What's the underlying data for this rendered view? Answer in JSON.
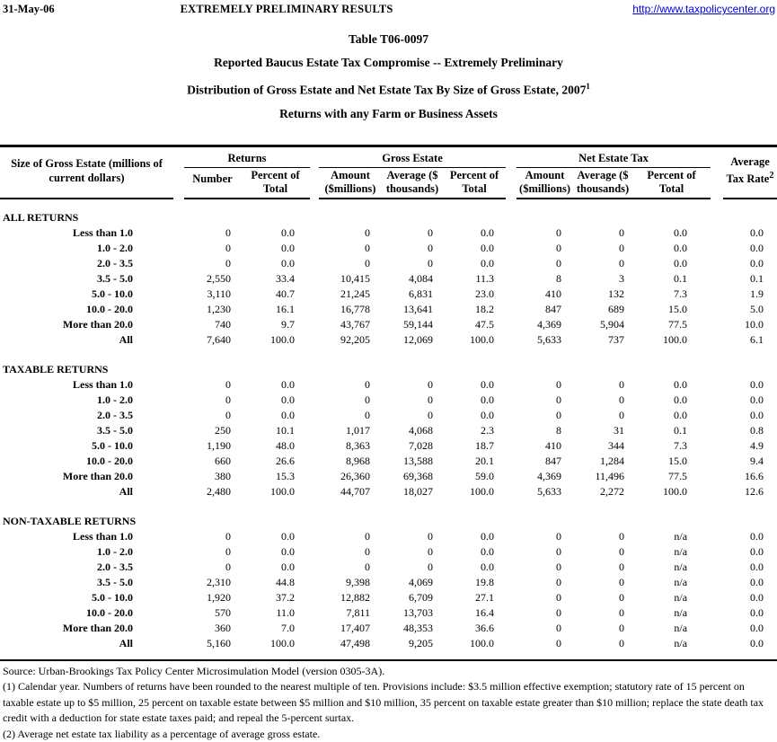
{
  "header": {
    "date": "31-May-06",
    "banner": "EXTREMELY PRELIMINARY RESULTS",
    "url": "http://www.taxpolicycenter.org"
  },
  "titles": {
    "line1": "Table T06-0097",
    "line2": "Reported Baucus Estate Tax Compromise -- Extremely Preliminary",
    "line3": "Distribution of Gross Estate and Net Estate Tax By Size of Gross Estate, 2007",
    "line3_sup": "1",
    "line4": "Returns with any Farm or Business Assets"
  },
  "table": {
    "stub_header": "Size of Gross Estate (millions of current dollars)",
    "groups": [
      {
        "label": "Returns"
      },
      {
        "label": "Gross Estate"
      },
      {
        "label": "Net Estate Tax"
      }
    ],
    "header_cols": [
      [
        "Number"
      ],
      [
        "Percent of",
        "Total"
      ],
      [
        "Amount",
        "($millions)"
      ],
      [
        "Average ($",
        "thousands)"
      ],
      [
        "Percent of",
        "Total"
      ],
      [
        "Amount",
        "($millions)"
      ],
      [
        "Average ($",
        "thousands)"
      ],
      [
        "Percent of",
        "Total"
      ]
    ],
    "rate_header": {
      "line1": "Average",
      "line2": "Tax Rate",
      "sup": "2"
    },
    "sections": [
      {
        "title": "ALL RETURNS",
        "rows": [
          {
            "label": "Less than 1.0",
            "values": [
              "0",
              "0.0",
              "0",
              "0",
              "0.0",
              "0",
              "0",
              "0.0",
              "0.0"
            ]
          },
          {
            "label": "1.0 - 2.0",
            "values": [
              "0",
              "0.0",
              "0",
              "0",
              "0.0",
              "0",
              "0",
              "0.0",
              "0.0"
            ]
          },
          {
            "label": "2.0 - 3.5",
            "values": [
              "0",
              "0.0",
              "0",
              "0",
              "0.0",
              "0",
              "0",
              "0.0",
              "0.0"
            ]
          },
          {
            "label": "3.5 - 5.0",
            "values": [
              "2,550",
              "33.4",
              "10,415",
              "4,084",
              "11.3",
              "8",
              "3",
              "0.1",
              "0.1"
            ]
          },
          {
            "label": "5.0 - 10.0",
            "values": [
              "3,110",
              "40.7",
              "21,245",
              "6,831",
              "23.0",
              "410",
              "132",
              "7.3",
              "1.9"
            ]
          },
          {
            "label": "10.0 - 20.0",
            "values": [
              "1,230",
              "16.1",
              "16,778",
              "13,641",
              "18.2",
              "847",
              "689",
              "15.0",
              "5.0"
            ]
          },
          {
            "label": "More than 20.0",
            "values": [
              "740",
              "9.7",
              "43,767",
              "59,144",
              "47.5",
              "4,369",
              "5,904",
              "77.5",
              "10.0"
            ]
          },
          {
            "label": "All",
            "values": [
              "7,640",
              "100.0",
              "92,205",
              "12,069",
              "100.0",
              "5,633",
              "737",
              "100.0",
              "6.1"
            ]
          }
        ]
      },
      {
        "title": "TAXABLE RETURNS",
        "rows": [
          {
            "label": "Less than 1.0",
            "values": [
              "0",
              "0.0",
              "0",
              "0",
              "0.0",
              "0",
              "0",
              "0.0",
              "0.0"
            ]
          },
          {
            "label": "1.0 - 2.0",
            "values": [
              "0",
              "0.0",
              "0",
              "0",
              "0.0",
              "0",
              "0",
              "0.0",
              "0.0"
            ]
          },
          {
            "label": "2.0 - 3.5",
            "values": [
              "0",
              "0.0",
              "0",
              "0",
              "0.0",
              "0",
              "0",
              "0.0",
              "0.0"
            ]
          },
          {
            "label": "3.5 - 5.0",
            "values": [
              "250",
              "10.1",
              "1,017",
              "4,068",
              "2.3",
              "8",
              "31",
              "0.1",
              "0.8"
            ]
          },
          {
            "label": "5.0 - 10.0",
            "values": [
              "1,190",
              "48.0",
              "8,363",
              "7,028",
              "18.7",
              "410",
              "344",
              "7.3",
              "4.9"
            ]
          },
          {
            "label": "10.0 - 20.0",
            "values": [
              "660",
              "26.6",
              "8,968",
              "13,588",
              "20.1",
              "847",
              "1,284",
              "15.0",
              "9.4"
            ]
          },
          {
            "label": "More than 20.0",
            "values": [
              "380",
              "15.3",
              "26,360",
              "69,368",
              "59.0",
              "4,369",
              "11,496",
              "77.5",
              "16.6"
            ]
          },
          {
            "label": "All",
            "values": [
              "2,480",
              "100.0",
              "44,707",
              "18,027",
              "100.0",
              "5,633",
              "2,272",
              "100.0",
              "12.6"
            ]
          }
        ]
      },
      {
        "title": "NON-TAXABLE RETURNS",
        "rows": [
          {
            "label": "Less than 1.0",
            "values": [
              "0",
              "0.0",
              "0",
              "0",
              "0.0",
              "0",
              "0",
              "n/a",
              "0.0"
            ]
          },
          {
            "label": "1.0 - 2.0",
            "values": [
              "0",
              "0.0",
              "0",
              "0",
              "0.0",
              "0",
              "0",
              "n/a",
              "0.0"
            ]
          },
          {
            "label": "2.0 - 3.5",
            "values": [
              "0",
              "0.0",
              "0",
              "0",
              "0.0",
              "0",
              "0",
              "n/a",
              "0.0"
            ]
          },
          {
            "label": "3.5 - 5.0",
            "values": [
              "2,310",
              "44.8",
              "9,398",
              "4,069",
              "19.8",
              "0",
              "0",
              "n/a",
              "0.0"
            ]
          },
          {
            "label": "5.0 - 10.0",
            "values": [
              "1,920",
              "37.2",
              "12,882",
              "6,709",
              "27.1",
              "0",
              "0",
              "n/a",
              "0.0"
            ]
          },
          {
            "label": "10.0 - 20.0",
            "values": [
              "570",
              "11.0",
              "7,811",
              "13,703",
              "16.4",
              "0",
              "0",
              "n/a",
              "0.0"
            ]
          },
          {
            "label": "More than 20.0",
            "values": [
              "360",
              "7.0",
              "17,407",
              "48,353",
              "36.6",
              "0",
              "0",
              "n/a",
              "0.0"
            ]
          },
          {
            "label": "All",
            "values": [
              "5,160",
              "100.0",
              "47,498",
              "9,205",
              "100.0",
              "0",
              "0",
              "n/a",
              "0.0"
            ]
          }
        ]
      }
    ]
  },
  "footer": {
    "source": "Source: Urban-Brookings Tax Policy Center Microsimulation Model (version 0305-3A).",
    "note1": "(1) Calendar year. Numbers of returns have been rounded to the nearest multiple of ten. Provisions include: $3.5 million effective exemption; statutory rate of 15 percent on taxable estate up to $5 million, 25 percent on taxable estate between $5 million and $10 million, 35 percent on taxable estate greater than $10 million; replace the state death tax credit with a deduction for state estate taxes paid; and repeal the 5-percent surtax.",
    "note2": "(2) Average net estate tax liability as a percentage of average gross estate."
  }
}
